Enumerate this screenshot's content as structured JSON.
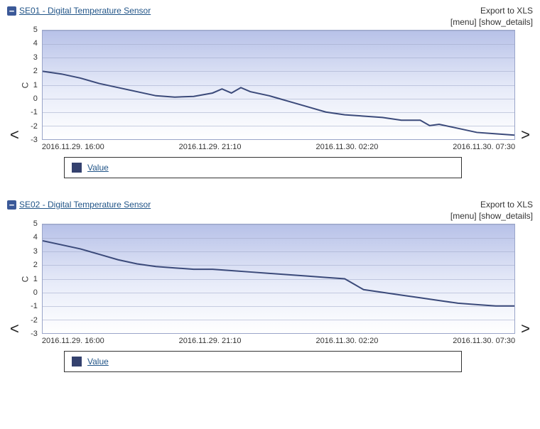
{
  "sensors": [
    {
      "title": "SE01 - Digital Temperature Sensor",
      "export_label": "Export to XLS",
      "menu_label": "[menu]",
      "details_label": "[show_details]",
      "ylabel": "C",
      "legend_label": "Value",
      "legend_color": "#34416e",
      "chart": {
        "type": "line",
        "ylim": [
          -3,
          5
        ],
        "ytick_values": [
          -3,
          -2,
          -1,
          0,
          1,
          2,
          3,
          4,
          5
        ],
        "xtick_labels": [
          "2016.11.29. 16:00",
          "2016.11.29. 21:10",
          "2016.11.30. 02:20",
          "2016.11.30. 07:30"
        ],
        "x_range": [
          0,
          100
        ],
        "line_color": "#3b4a7a",
        "line_width": 2,
        "grid_color": "rgba(160,170,200,0.55)",
        "bg_gradient_top": "#b7c1e8",
        "bg_gradient_bottom": "#ffffff",
        "series": [
          {
            "x": 0,
            "y": 2.0
          },
          {
            "x": 4,
            "y": 1.8
          },
          {
            "x": 8,
            "y": 1.5
          },
          {
            "x": 12,
            "y": 1.1
          },
          {
            "x": 16,
            "y": 0.8
          },
          {
            "x": 20,
            "y": 0.5
          },
          {
            "x": 24,
            "y": 0.2
          },
          {
            "x": 28,
            "y": 0.1
          },
          {
            "x": 32,
            "y": 0.15
          },
          {
            "x": 36,
            "y": 0.4
          },
          {
            "x": 38,
            "y": 0.7
          },
          {
            "x": 40,
            "y": 0.4
          },
          {
            "x": 42,
            "y": 0.8
          },
          {
            "x": 44,
            "y": 0.5
          },
          {
            "x": 48,
            "y": 0.2
          },
          {
            "x": 50,
            "y": 0.0
          },
          {
            "x": 52,
            "y": -0.2
          },
          {
            "x": 56,
            "y": -0.6
          },
          {
            "x": 60,
            "y": -1.0
          },
          {
            "x": 64,
            "y": -1.2
          },
          {
            "x": 68,
            "y": -1.3
          },
          {
            "x": 72,
            "y": -1.4
          },
          {
            "x": 76,
            "y": -1.6
          },
          {
            "x": 80,
            "y": -1.6
          },
          {
            "x": 82,
            "y": -2.0
          },
          {
            "x": 84,
            "y": -1.9
          },
          {
            "x": 88,
            "y": -2.2
          },
          {
            "x": 92,
            "y": -2.5
          },
          {
            "x": 96,
            "y": -2.6
          },
          {
            "x": 100,
            "y": -2.7
          }
        ]
      }
    },
    {
      "title": "SE02 - Digital Temperature Sensor",
      "export_label": "Export to XLS",
      "menu_label": "[menu]",
      "details_label": "[show_details]",
      "ylabel": "C",
      "legend_label": "Value",
      "legend_color": "#34416e",
      "chart": {
        "type": "line",
        "ylim": [
          -3,
          5
        ],
        "ytick_values": [
          -3,
          -2,
          -1,
          0,
          1,
          2,
          3,
          4,
          5
        ],
        "xtick_labels": [
          "2016.11.29. 16:00",
          "2016.11.29. 21:10",
          "2016.11.30. 02:20",
          "2016.11.30. 07:30"
        ],
        "x_range": [
          0,
          100
        ],
        "line_color": "#3b4a7a",
        "line_width": 2,
        "grid_color": "rgba(160,170,200,0.55)",
        "bg_gradient_top": "#b7c1e8",
        "bg_gradient_bottom": "#ffffff",
        "series": [
          {
            "x": 0,
            "y": 3.8
          },
          {
            "x": 4,
            "y": 3.5
          },
          {
            "x": 8,
            "y": 3.2
          },
          {
            "x": 12,
            "y": 2.8
          },
          {
            "x": 16,
            "y": 2.4
          },
          {
            "x": 20,
            "y": 2.1
          },
          {
            "x": 24,
            "y": 1.9
          },
          {
            "x": 28,
            "y": 1.8
          },
          {
            "x": 32,
            "y": 1.7
          },
          {
            "x": 36,
            "y": 1.7
          },
          {
            "x": 40,
            "y": 1.6
          },
          {
            "x": 44,
            "y": 1.5
          },
          {
            "x": 48,
            "y": 1.4
          },
          {
            "x": 52,
            "y": 1.3
          },
          {
            "x": 56,
            "y": 1.2
          },
          {
            "x": 60,
            "y": 1.1
          },
          {
            "x": 64,
            "y": 1.0
          },
          {
            "x": 66,
            "y": 0.6
          },
          {
            "x": 68,
            "y": 0.2
          },
          {
            "x": 72,
            "y": 0.0
          },
          {
            "x": 76,
            "y": -0.2
          },
          {
            "x": 80,
            "y": -0.4
          },
          {
            "x": 84,
            "y": -0.6
          },
          {
            "x": 88,
            "y": -0.8
          },
          {
            "x": 92,
            "y": -0.9
          },
          {
            "x": 96,
            "y": -1.0
          },
          {
            "x": 100,
            "y": -1.0
          }
        ]
      }
    }
  ]
}
